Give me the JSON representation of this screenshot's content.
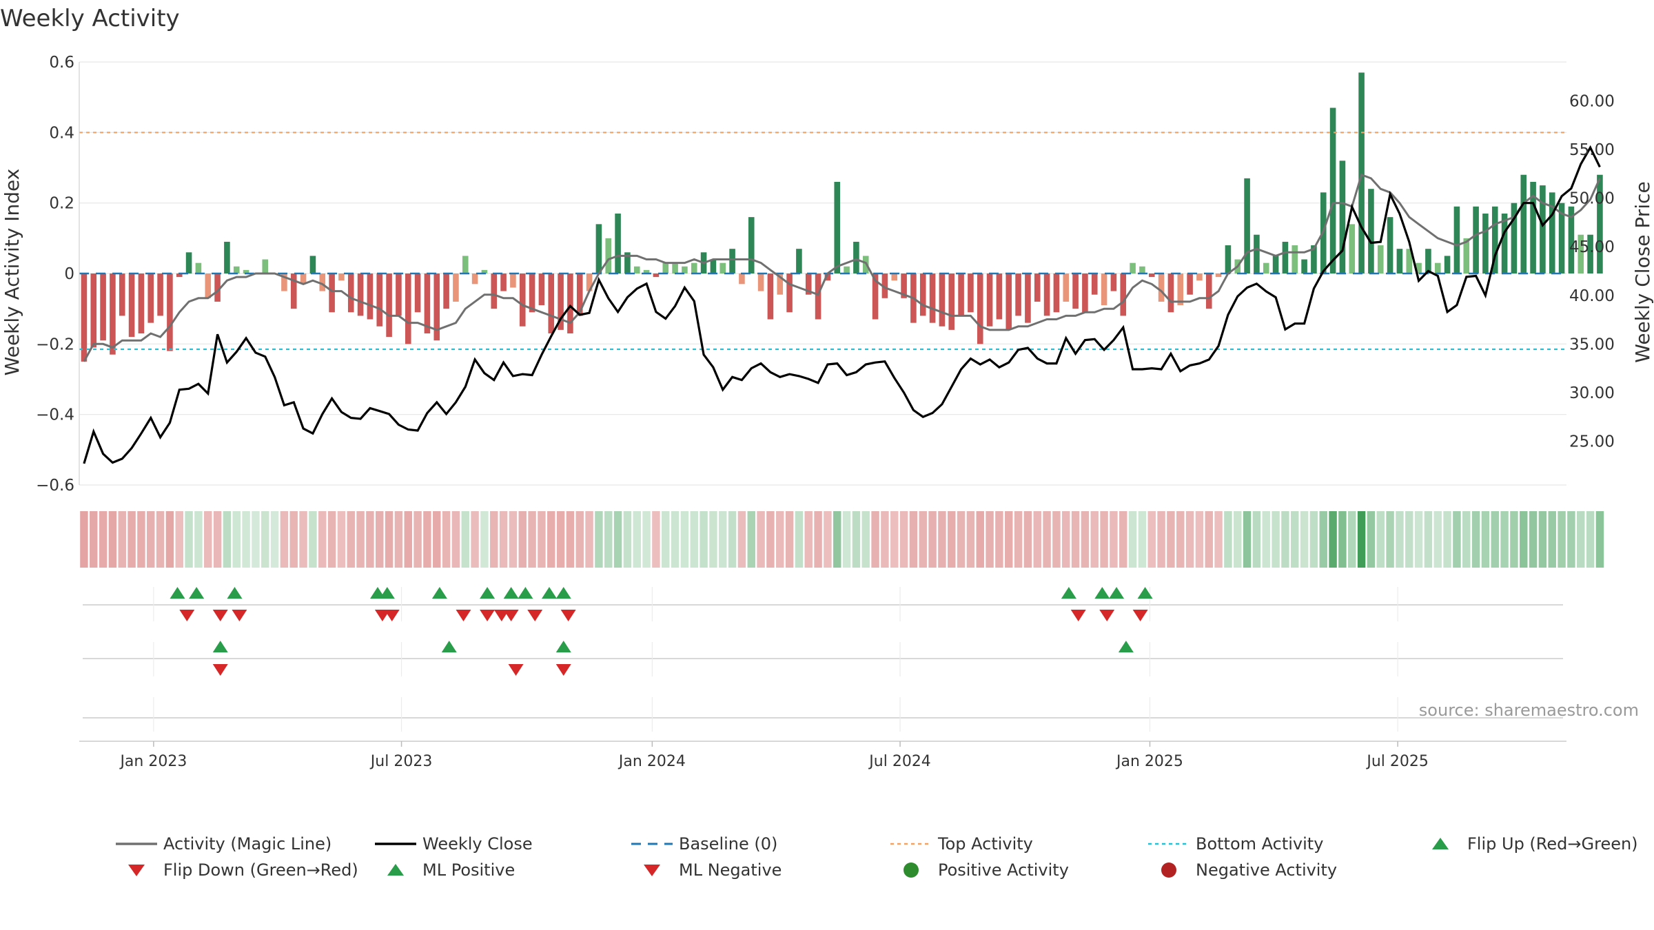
{
  "chart_data": {
    "type": "bar",
    "title": "Weekly Activity",
    "ylabel_left": "Weekly Activity Index",
    "ylabel_right": "Weekly Close Price",
    "ylim_left": [
      -0.6,
      0.6
    ],
    "ylim_right": [
      20.5,
      64
    ],
    "left_ticks": [
      {
        "v": 0.6,
        "label": "0.6"
      },
      {
        "v": 0.4,
        "label": "0.4"
      },
      {
        "v": 0.2,
        "label": "0.2"
      },
      {
        "v": 0,
        "label": "0"
      },
      {
        "v": -0.2,
        "label": "−0.2"
      },
      {
        "v": -0.4,
        "label": "−0.4"
      },
      {
        "v": -0.6,
        "label": "−0.6"
      }
    ],
    "right_ticks": [
      {
        "v": 60,
        "label": "60.00"
      },
      {
        "v": 55,
        "label": "55.00"
      },
      {
        "v": 50,
        "label": "50.00"
      },
      {
        "v": 45,
        "label": "45.00"
      },
      {
        "v": 40,
        "label": "40.00"
      },
      {
        "v": 35,
        "label": "35.00"
      },
      {
        "v": 30,
        "label": "30.00"
      },
      {
        "v": 25,
        "label": "25.00"
      }
    ],
    "x_ticks": [
      {
        "week": 7.3,
        "label": "Jan 2023"
      },
      {
        "week": 33.3,
        "label": "Jul 2023"
      },
      {
        "week": 59.6,
        "label": "Jan 2024"
      },
      {
        "week": 85.6,
        "label": "Jul 2024"
      },
      {
        "week": 111.8,
        "label": "Jan 2025"
      },
      {
        "week": 137.8,
        "label": "Jul 2025"
      }
    ],
    "n_weeks": 156,
    "activity": [
      -0.25,
      -0.21,
      -0.19,
      -0.23,
      -0.12,
      -0.18,
      -0.17,
      -0.14,
      -0.12,
      -0.22,
      -0.01,
      0.06,
      0.03,
      -0.07,
      -0.08,
      0.09,
      0.02,
      0.01,
      0.0,
      0.04,
      0.0,
      -0.05,
      -0.1,
      -0.03,
      0.05,
      -0.05,
      -0.11,
      -0.02,
      -0.11,
      -0.12,
      -0.13,
      -0.15,
      -0.18,
      -0.12,
      -0.2,
      -0.11,
      -0.17,
      -0.19,
      -0.1,
      -0.08,
      0.05,
      -0.03,
      0.01,
      -0.1,
      -0.05,
      -0.04,
      -0.15,
      -0.11,
      -0.09,
      -0.17,
      -0.16,
      -0.17,
      -0.12,
      -0.05,
      0.14,
      0.1,
      0.17,
      0.06,
      0.02,
      0.01,
      -0.01,
      0.03,
      0.03,
      0.02,
      0.03,
      0.06,
      0.04,
      0.03,
      0.07,
      -0.03,
      0.16,
      -0.05,
      -0.13,
      -0.06,
      -0.11,
      0.07,
      -0.06,
      -0.13,
      -0.02,
      0.26,
      0.02,
      0.09,
      0.05,
      -0.13,
      -0.07,
      -0.02,
      -0.07,
      -0.14,
      -0.12,
      -0.14,
      -0.15,
      -0.16,
      -0.12,
      -0.11,
      -0.2,
      -0.15,
      -0.13,
      -0.16,
      -0.12,
      -0.14,
      -0.08,
      -0.12,
      -0.11,
      -0.08,
      -0.1,
      -0.11,
      -0.06,
      -0.09,
      -0.05,
      -0.12,
      0.03,
      0.02,
      -0.01,
      -0.08,
      -0.11,
      -0.09,
      -0.06,
      -0.02,
      -0.1,
      -0.01,
      0.08,
      0.04,
      0.27,
      0.11,
      0.03,
      0.05,
      0.09,
      0.08,
      0.04,
      0.08,
      0.23,
      0.47,
      0.32,
      0.14,
      0.57,
      0.24,
      0.08,
      0.16,
      0.07,
      0.07,
      0.03,
      0.07,
      0.03,
      0.05,
      0.19,
      0.1,
      0.19,
      0.17,
      0.19,
      0.17,
      0.2,
      0.28,
      0.26,
      0.25,
      0.23,
      0.2,
      0.19,
      0.11,
      0.11,
      0.28
    ],
    "close": [
      22.7,
      26.0,
      23.7,
      22.8,
      23.2,
      24.3,
      25.8,
      27.4,
      25.4,
      26.9,
      30.3,
      30.4,
      30.9,
      29.9,
      36.0,
      33.1,
      34.2,
      35.6,
      34.1,
      33.7,
      31.6,
      28.7,
      29.0,
      26.3,
      25.8,
      27.8,
      29.4,
      28.0,
      27.4,
      27.3,
      28.4,
      28.1,
      27.8,
      26.7,
      26.2,
      26.1,
      27.9,
      29.0,
      27.8,
      29.0,
      30.6,
      33.4,
      32.0,
      31.3,
      33.1,
      31.7,
      31.9,
      31.8,
      33.9,
      35.8,
      37.6,
      38.9,
      38.0,
      38.2,
      41.6,
      39.7,
      38.3,
      39.8,
      40.7,
      41.2,
      38.3,
      37.6,
      38.9,
      40.8,
      39.4,
      33.9,
      32.6,
      30.3,
      31.6,
      31.3,
      32.5,
      33.0,
      32.1,
      31.6,
      31.9,
      31.7,
      31.4,
      31.0,
      32.9,
      33.0,
      31.8,
      32.1,
      32.9,
      33.1,
      33.2,
      31.5,
      30.0,
      28.2,
      27.5,
      27.9,
      28.8,
      30.6,
      32.4,
      33.5,
      32.9,
      33.4,
      32.6,
      33.1,
      34.4,
      34.6,
      33.5,
      33.0,
      33.0,
      35.6,
      34.0,
      35.4,
      35.5,
      34.4,
      35.4,
      36.7,
      32.4,
      32.4,
      32.5,
      32.4,
      34.0,
      32.2,
      32.8,
      33.0,
      33.4,
      34.8,
      38.0,
      39.9,
      40.8,
      41.2,
      40.4,
      39.8,
      36.5,
      37.1,
      37.1,
      40.7,
      42.5,
      43.6,
      44.6,
      49.1,
      47.0,
      45.4,
      45.5,
      50.4,
      48.4,
      45.5,
      41.5,
      42.5,
      42.0,
      38.3,
      39.0,
      41.9,
      42.0,
      40.0,
      44.1,
      46.5,
      47.9,
      49.5,
      49.5,
      47.2,
      48.3,
      50.2,
      51.0,
      53.5,
      55.2,
      53.2
    ],
    "magic_line": [
      -0.25,
      -0.2,
      -0.2,
      -0.21,
      -0.19,
      -0.19,
      -0.19,
      -0.17,
      -0.18,
      -0.15,
      -0.11,
      -0.08,
      -0.07,
      -0.07,
      -0.05,
      -0.02,
      -0.01,
      -0.01,
      0.0,
      0.0,
      0.0,
      -0.01,
      -0.02,
      -0.03,
      -0.02,
      -0.03,
      -0.05,
      -0.05,
      -0.07,
      -0.08,
      -0.09,
      -0.1,
      -0.12,
      -0.12,
      -0.14,
      -0.14,
      -0.15,
      -0.16,
      -0.15,
      -0.14,
      -0.1,
      -0.08,
      -0.06,
      -0.06,
      -0.07,
      -0.07,
      -0.09,
      -0.1,
      -0.11,
      -0.12,
      -0.13,
      -0.14,
      -0.11,
      -0.05,
      0.0,
      0.04,
      0.05,
      0.05,
      0.05,
      0.04,
      0.04,
      0.03,
      0.03,
      0.03,
      0.04,
      0.03,
      0.04,
      0.04,
      0.04,
      0.04,
      0.04,
      0.03,
      0.01,
      -0.01,
      -0.03,
      -0.04,
      -0.05,
      -0.06,
      0.0,
      0.02,
      0.03,
      0.04,
      0.03,
      -0.02,
      -0.04,
      -0.05,
      -0.06,
      -0.07,
      -0.09,
      -0.1,
      -0.11,
      -0.12,
      -0.12,
      -0.12,
      -0.15,
      -0.16,
      -0.16,
      -0.16,
      -0.15,
      -0.15,
      -0.14,
      -0.13,
      -0.13,
      -0.12,
      -0.12,
      -0.11,
      -0.11,
      -0.1,
      -0.1,
      -0.08,
      -0.04,
      -0.02,
      -0.03,
      -0.05,
      -0.08,
      -0.08,
      -0.08,
      -0.07,
      -0.07,
      -0.05,
      0.0,
      0.02,
      0.06,
      0.07,
      0.06,
      0.05,
      0.06,
      0.06,
      0.06,
      0.07,
      0.12,
      0.2,
      0.2,
      0.19,
      0.28,
      0.27,
      0.24,
      0.23,
      0.2,
      0.16,
      0.14,
      0.12,
      0.1,
      0.09,
      0.08,
      0.09,
      0.11,
      0.12,
      0.14,
      0.15,
      0.16,
      0.2,
      0.22,
      0.2,
      0.19,
      0.17,
      0.16,
      0.18,
      0.21,
      0.27
    ],
    "baseline": 0,
    "top_activity": 0.4,
    "bottom_activity": -0.215,
    "flip_up_weeks": [
      9.8,
      11.8,
      15.8,
      30.8,
      31.8,
      37.3,
      42.3,
      44.8,
      46.3,
      48.8,
      50.3,
      103.3,
      106.8,
      108.3,
      111.3
    ],
    "flip_down_weeks": [
      10.8,
      14.3,
      16.3,
      31.3,
      32.3,
      39.8,
      42.3,
      43.8,
      44.8,
      47.3,
      50.8,
      104.3,
      107.3,
      110.8
    ],
    "ml_positive_weeks": [
      14.3,
      38.3,
      50.3,
      109.3
    ],
    "ml_negative_weeks": [
      14.3,
      45.3,
      50.3
    ],
    "source": "source: sharemaestro.com",
    "legend": [
      {
        "label": "Activity (Magic Line)",
        "kind": "line",
        "color": "#707070"
      },
      {
        "label": "Weekly Close",
        "kind": "line",
        "color": "#000000"
      },
      {
        "label": "Baseline (0)",
        "kind": "dash",
        "color": "#1f77b4"
      },
      {
        "label": "Top Activity",
        "kind": "dot",
        "color": "#f4a261"
      },
      {
        "label": "Bottom Activity",
        "kind": "dot",
        "color": "#22c1d6"
      },
      {
        "label": "Flip Up (Red→Green)",
        "kind": "tri-up",
        "color": "#2a9d4a"
      },
      {
        "label": "Flip Down (Green→Red)",
        "kind": "tri-down",
        "color": "#d62728"
      },
      {
        "label": "ML Positive",
        "kind": "tri-up",
        "color": "#2a9d4a"
      },
      {
        "label": "ML Negative",
        "kind": "tri-down",
        "color": "#d62728"
      },
      {
        "label": "Positive Activity",
        "kind": "circle",
        "color": "#2e8b2e"
      },
      {
        "label": "Negative Activity",
        "kind": "circle",
        "color": "#b22222"
      }
    ],
    "colors": {
      "pos_strong": "#2e8555",
      "pos_light": "#7cbf7c",
      "neg_strong": "#cc5555",
      "neg_light": "#e8957a",
      "magic_line": "#707070",
      "close": "#000000"
    }
  }
}
